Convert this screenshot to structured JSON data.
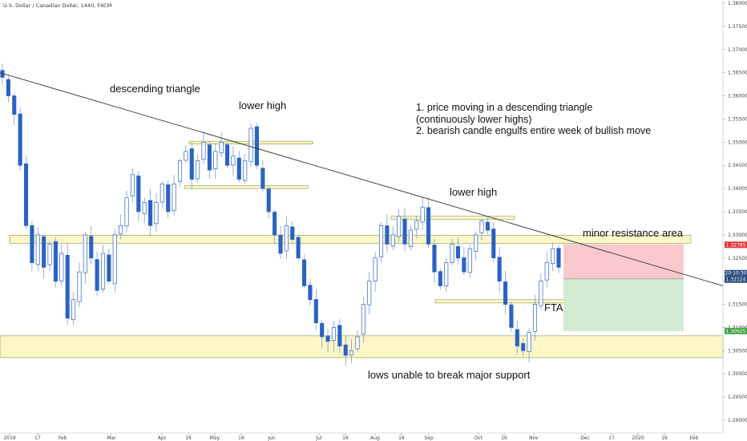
{
  "symbol_title": "U.S. Dollar / Canadian Dollar, 1440, FXCM",
  "chart_data": {
    "type": "candlestick",
    "title": "U.S. Dollar / Canadian Dollar, 1440, FXCM",
    "ylim": [
      1.2855,
      1.3805
    ],
    "y_ticks": [
      "1.38000",
      "1.37500",
      "1.37000",
      "1.36500",
      "1.36000",
      "1.35500",
      "1.35000",
      "1.34500",
      "1.34000",
      "1.33500",
      "1.33000",
      "1.32500",
      "1.32000",
      "1.31500",
      "1.31000",
      "1.30500",
      "1.30000",
      "1.29500",
      "1.29000"
    ],
    "x_ticks": [
      "2019",
      "17",
      "Feb",
      "Mar",
      "Apr",
      "16",
      "May",
      "16",
      "Jun",
      "Jul",
      "16",
      "Aug",
      "16",
      "Sep",
      "Oct",
      "16",
      "Nov",
      "Dec",
      "17",
      "2020",
      "16",
      "Feb"
    ],
    "price_path": [
      1.364,
      1.36,
      1.356,
      1.345,
      1.332,
      1.324,
      1.33,
      1.323,
      1.328,
      1.32,
      1.326,
      1.312,
      1.316,
      1.322,
      1.33,
      1.325,
      1.318,
      1.326,
      1.32,
      1.33,
      1.332,
      1.338,
      1.343,
      1.335,
      1.337,
      1.332,
      1.337,
      1.341,
      1.335,
      1.341,
      1.346,
      1.348,
      1.342,
      1.346,
      1.35,
      1.344,
      1.348,
      1.35,
      1.345,
      1.347,
      1.342,
      1.346,
      1.353,
      1.345,
      1.34,
      1.335,
      1.33,
      1.326,
      1.332,
      1.329,
      1.325,
      1.319,
      1.316,
      1.311,
      1.308,
      1.307,
      1.31,
      1.306,
      1.304,
      1.305,
      1.308,
      1.315,
      1.32,
      1.325,
      1.332,
      1.328,
      1.33,
      1.334,
      1.328,
      1.331,
      1.333,
      1.336,
      1.328,
      1.322,
      1.319,
      1.324,
      1.328,
      1.325,
      1.322,
      1.327,
      1.33,
      1.333,
      1.331,
      1.325,
      1.32,
      1.315,
      1.31,
      1.306,
      1.305,
      1.309,
      1.315,
      1.32,
      1.324,
      1.327,
      1.323
    ],
    "levels": {
      "minor_resistance_zone": [
        1.3282,
        1.3299
      ],
      "major_support_zone": [
        1.3035,
        1.3082
      ],
      "range_upper_box": [
        1.3496,
        1.3502
      ],
      "range_mid_box": [
        1.34,
        1.3406
      ],
      "sep_high_box": [
        1.3333,
        1.334
      ],
      "fta_box": [
        1.3153,
        1.316
      ]
    },
    "trendline": {
      "from": [
        "2019",
        1.365
      ],
      "to": [
        "Feb",
        1.319
      ]
    },
    "position": {
      "entry": 1.3205,
      "stop": 1.328,
      "target": 1.3092
    },
    "price_tags": {
      "stop": "1.32785",
      "timer": "20:10:30",
      "current": "1.32124",
      "target": "1.30925"
    },
    "colors": {
      "bull_candle": "#2b62c3",
      "bear_candle": "#2b62c3",
      "wick": "#6f8fd0",
      "trendline": "#333333",
      "stop_zone": "#f9c9cd",
      "target_zone": "#d4ebd3",
      "resistance_zone": "#fdf6c8",
      "support_zone": "#fdf6c8",
      "zone_border": "#7f9a3b",
      "stop_tag": "#e5383b",
      "current_tag": "#2c4a7e",
      "target_tag": "#43a047"
    }
  },
  "annotations": {
    "descending_triangle": "descending triangle",
    "lower_high_1": "lower high",
    "lower_high_2": "lower high",
    "notes_line1": "1. price moving in a descending triangle",
    "notes_line2": "(continuously lower highs)",
    "notes_line3": "2. bearish candle engulfs entire week of bullish move",
    "minor_resistance": "minor resistance area",
    "fta": "FTA",
    "lows_support": "lows unable to break major support"
  }
}
